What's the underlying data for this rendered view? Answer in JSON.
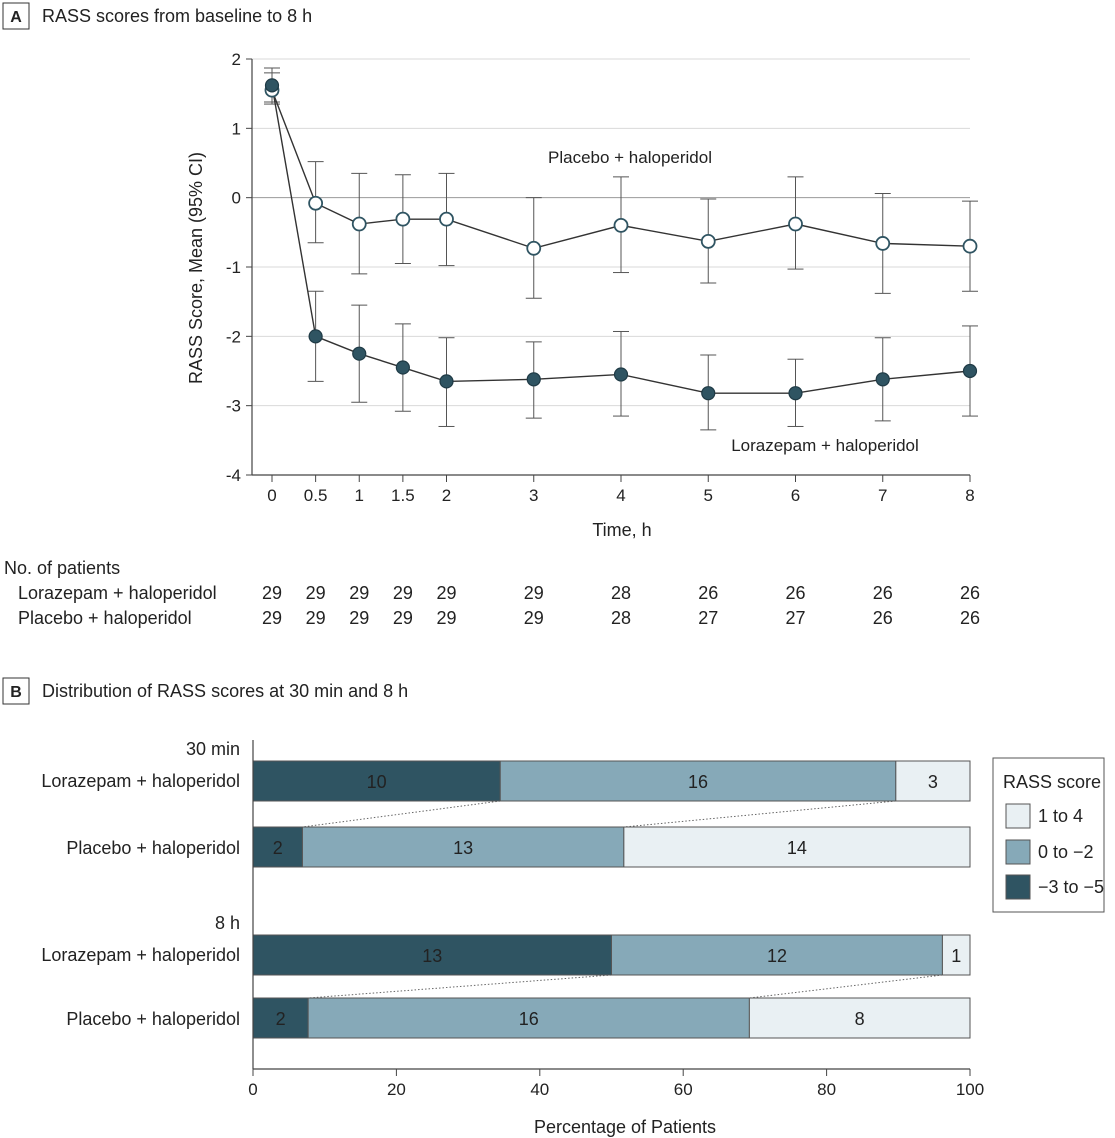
{
  "colors": {
    "dark": "#2f5462",
    "mid": "#86a9b8",
    "light": "#e9f0f3",
    "axis": "#444444",
    "grid": "#d9d9d9",
    "text": "#222222"
  },
  "chart_data": [
    {
      "panel": "A",
      "title": "RASS scores from baseline to 8 h",
      "type": "line",
      "xlabel": "Time, h",
      "ylabel": "RASS Score, Mean (95% CI)",
      "xlim": [
        0,
        8
      ],
      "ylim": [
        -4,
        2
      ],
      "x_ticks": [
        0,
        0.5,
        1,
        1.5,
        2,
        3,
        4,
        5,
        6,
        7,
        8
      ],
      "x_tick_labels": [
        "0",
        "0.5",
        "1",
        "1.5",
        "2",
        "3",
        "4",
        "5",
        "6",
        "7",
        "8"
      ],
      "y_ticks": [
        -4,
        -3,
        -2,
        -1,
        0,
        1,
        2
      ],
      "y_tick_labels": [
        "-4",
        "-3",
        "-2",
        "-1",
        "0",
        "1",
        "2"
      ],
      "grid": true,
      "series": [
        {
          "name": "Placebo + haloperidol",
          "marker": "open-circle",
          "x": [
            0,
            0.5,
            1,
            1.5,
            2,
            3,
            4,
            5,
            6,
            7,
            8
          ],
          "y": [
            1.55,
            -0.08,
            -0.38,
            -0.31,
            -0.31,
            -0.73,
            -0.4,
            -0.63,
            -0.38,
            -0.66,
            -0.7
          ],
          "ci_low": [
            1.35,
            -0.65,
            -1.1,
            -0.95,
            -0.98,
            -1.45,
            -1.08,
            -1.23,
            -1.03,
            -1.38,
            -1.35
          ],
          "ci_high": [
            1.8,
            0.52,
            0.35,
            0.33,
            0.35,
            0.0,
            0.3,
            -0.02,
            0.3,
            0.06,
            -0.05
          ]
        },
        {
          "name": "Lorazepam + haloperidol",
          "marker": "filled-circle",
          "x": [
            0,
            0.5,
            1,
            1.5,
            2,
            3,
            4,
            5,
            6,
            7,
            8
          ],
          "y": [
            1.62,
            -2.0,
            -2.25,
            -2.45,
            -2.65,
            -2.62,
            -2.55,
            -2.82,
            -2.82,
            -2.62,
            -2.5
          ],
          "ci_low": [
            1.38,
            -2.65,
            -2.95,
            -3.08,
            -3.3,
            -3.18,
            -3.15,
            -3.35,
            -3.3,
            -3.22,
            -3.15
          ],
          "ci_high": [
            1.87,
            -1.35,
            -1.55,
            -1.82,
            -2.02,
            -2.08,
            -1.93,
            -2.27,
            -2.33,
            -2.02,
            -1.85
          ]
        }
      ],
      "series_labels": [
        "Placebo + haloperidol",
        "Lorazepam + haloperidol"
      ],
      "patients_table": {
        "title": "No. of patients",
        "rows": [
          {
            "label": "Lorazepam + haloperidol",
            "values": [
              "29",
              "29",
              "29",
              "29",
              "29",
              "29",
              "28",
              "26",
              "26",
              "26",
              "26"
            ]
          },
          {
            "label": "Placebo + haloperidol",
            "values": [
              "29",
              "29",
              "29",
              "29",
              "29",
              "29",
              "28",
              "27",
              "27",
              "26",
              "26"
            ]
          }
        ]
      }
    },
    {
      "panel": "B",
      "title": "Distribution of RASS scores at 30 min and 8 h",
      "type": "bar",
      "orientation": "horizontal",
      "stacked": true,
      "xlabel": "Percentage of Patients",
      "xlim": [
        0,
        100
      ],
      "x_ticks": [
        0,
        20,
        40,
        60,
        80,
        100
      ],
      "x_tick_labels": [
        "0",
        "20",
        "40",
        "60",
        "80",
        "100"
      ],
      "legend": {
        "title": "RASS score",
        "placement": "right",
        "items": [
          {
            "label": "1 to 4",
            "color": "#e9f0f3"
          },
          {
            "label": "0 to −2",
            "color": "#86a9b8"
          },
          {
            "label": "−3 to −5",
            "color": "#2f5462"
          }
        ]
      },
      "groups": [
        {
          "label": "30 min",
          "bars": [
            {
              "name": "Lorazepam + haloperidol",
              "counts": [
                10,
                16,
                3
              ],
              "labels": [
                "10",
                "16",
                "3"
              ]
            },
            {
              "name": "Placebo + haloperidol",
              "counts": [
                2,
                13,
                14
              ],
              "labels": [
                "2",
                "13",
                "14"
              ]
            }
          ]
        },
        {
          "label": "8 h",
          "bars": [
            {
              "name": "Lorazepam + haloperidol",
              "counts": [
                13,
                12,
                1
              ],
              "labels": [
                "13",
                "12",
                "1"
              ]
            },
            {
              "name": "Placebo + haloperidol",
              "counts": [
                2,
                16,
                8
              ],
              "labels": [
                "2",
                "16",
                "8"
              ]
            }
          ]
        }
      ],
      "segment_order": [
        "−3 to −5",
        "0 to −2",
        "1 to 4"
      ]
    }
  ]
}
